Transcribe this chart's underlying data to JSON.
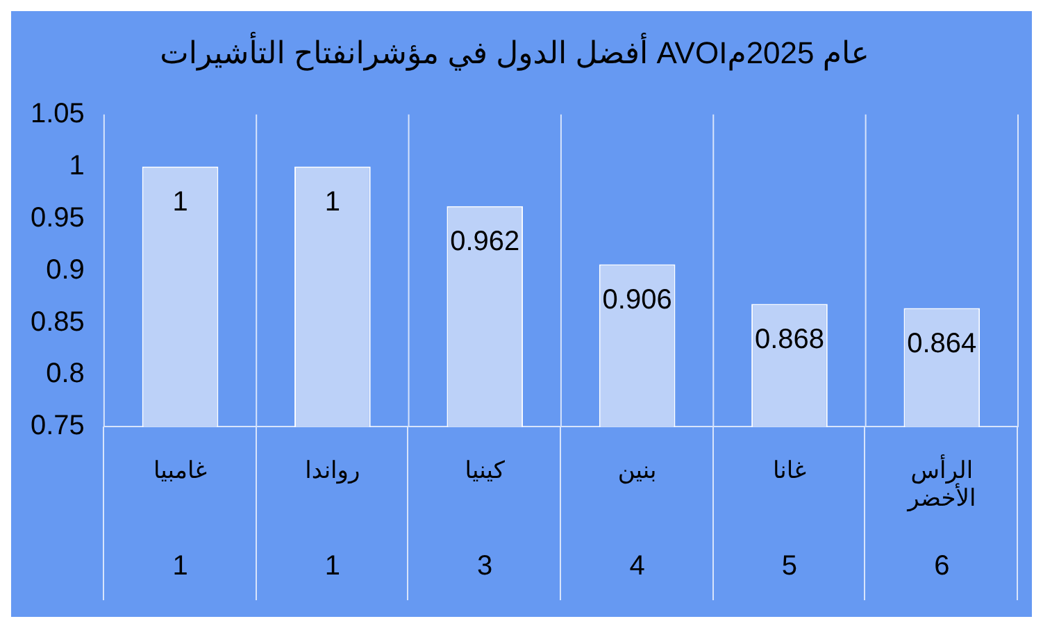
{
  "chart_data": {
    "type": "bar",
    "title": "أفضل الدول في مؤشرانفتاح التأشيرات AVOIعام 2025م",
    "categories": [
      "غامبيا",
      "رواندا",
      "كينيا",
      "بنين",
      "غانا",
      "الرأس الأخضر"
    ],
    "values": [
      1,
      1,
      0.962,
      0.906,
      0.868,
      0.864
    ],
    "color": "#bcd1f8",
    "ylim": [
      0.75,
      1.05
    ],
    "yticks": [
      0.75,
      0.8,
      0.85,
      0.9,
      0.95,
      1,
      1.05
    ],
    "grid": "x",
    "data_labels": true,
    "legend": false,
    "annotations": [
      "1",
      "1",
      "3",
      "4",
      "5",
      "6"
    ]
  }
}
